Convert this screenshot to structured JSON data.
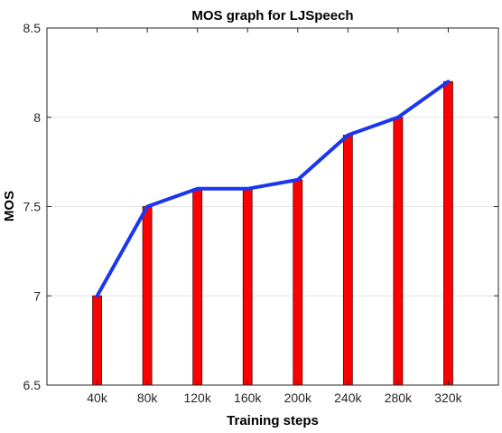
{
  "chart_data": {
    "type": "bar",
    "title": "MOS graph for LJSpeech",
    "xlabel": "Training steps",
    "ylabel": "MOS",
    "categories": [
      "40k",
      "80k",
      "120k",
      "160k",
      "200k",
      "240k",
      "280k",
      "320k"
    ],
    "series": [
      {
        "type": "bar",
        "values": [
          7.0,
          7.5,
          7.6,
          7.6,
          7.65,
          7.9,
          8.0,
          8.2
        ],
        "color": "#ff0000"
      },
      {
        "type": "line",
        "values": [
          7.0,
          7.5,
          7.6,
          7.6,
          7.65,
          7.9,
          8.0,
          8.2
        ],
        "color": "#1a36f0"
      }
    ],
    "ylim": [
      6.5,
      8.5
    ],
    "yticks": [
      6.5,
      7,
      7.5,
      8,
      8.5
    ],
    "ytick_labels": [
      "6.5",
      "7",
      "7.5",
      "8",
      "8.5"
    ],
    "grid": "horizontal"
  }
}
